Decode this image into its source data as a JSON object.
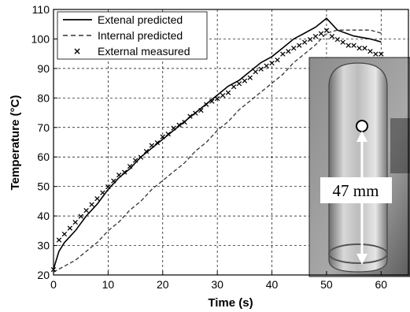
{
  "chart_data": {
    "type": "line",
    "title": "",
    "xlabel": "Time (s)",
    "ylabel": "Temperature (°C)",
    "xlim": [
      0,
      65
    ],
    "ylim": [
      20,
      110
    ],
    "xticks": [
      0,
      10,
      20,
      30,
      40,
      50,
      60
    ],
    "yticks": [
      20,
      30,
      40,
      50,
      60,
      70,
      80,
      90,
      100,
      110
    ],
    "grid": true,
    "legend_position": "top-left",
    "series": [
      {
        "name": "Extenal predicted",
        "style": "solid",
        "color": "#000000",
        "points": [
          [
            0,
            22
          ],
          [
            1,
            28
          ],
          [
            2,
            31
          ],
          [
            4,
            35
          ],
          [
            6,
            40
          ],
          [
            8,
            44
          ],
          [
            10,
            49
          ],
          [
            12,
            53
          ],
          [
            14,
            56
          ],
          [
            16,
            60
          ],
          [
            18,
            63
          ],
          [
            20,
            66
          ],
          [
            22,
            69
          ],
          [
            24,
            72
          ],
          [
            26,
            75
          ],
          [
            28,
            78
          ],
          [
            30,
            81
          ],
          [
            32,
            84
          ],
          [
            34,
            86
          ],
          [
            36,
            89
          ],
          [
            38,
            92
          ],
          [
            40,
            94
          ],
          [
            42,
            97
          ],
          [
            44,
            100
          ],
          [
            46,
            102
          ],
          [
            48,
            104
          ],
          [
            50,
            107
          ],
          [
            52,
            103
          ],
          [
            55,
            101
          ],
          [
            58,
            100
          ],
          [
            60,
            99
          ]
        ]
      },
      {
        "name": "Internal predicted",
        "style": "dashed",
        "color": "#333333",
        "points": [
          [
            0,
            21
          ],
          [
            2,
            23
          ],
          [
            4,
            25
          ],
          [
            6,
            28
          ],
          [
            8,
            31
          ],
          [
            10,
            35
          ],
          [
            12,
            38
          ],
          [
            14,
            42
          ],
          [
            16,
            45
          ],
          [
            18,
            49
          ],
          [
            20,
            52
          ],
          [
            22,
            55
          ],
          [
            24,
            58
          ],
          [
            26,
            62
          ],
          [
            28,
            65
          ],
          [
            30,
            69
          ],
          [
            32,
            72
          ],
          [
            34,
            76
          ],
          [
            36,
            79
          ],
          [
            38,
            82
          ],
          [
            40,
            85
          ],
          [
            42,
            88
          ],
          [
            44,
            92
          ],
          [
            46,
            95
          ],
          [
            48,
            98
          ],
          [
            50,
            102
          ],
          [
            52,
            103
          ],
          [
            54,
            103
          ],
          [
            56,
            103
          ],
          [
            58,
            103
          ],
          [
            60,
            102
          ]
        ]
      },
      {
        "name": "External measured",
        "style": "markers-x",
        "color": "#000000",
        "points": [
          [
            0,
            22
          ],
          [
            1,
            32
          ],
          [
            2,
            34
          ],
          [
            3,
            36
          ],
          [
            4,
            38
          ],
          [
            5,
            40
          ],
          [
            6,
            42
          ],
          [
            7,
            44
          ],
          [
            8,
            46
          ],
          [
            9,
            48
          ],
          [
            10,
            50
          ],
          [
            11,
            52
          ],
          [
            12,
            54
          ],
          [
            13,
            55
          ],
          [
            14,
            57
          ],
          [
            15,
            59
          ],
          [
            16,
            60
          ],
          [
            17,
            62
          ],
          [
            18,
            64
          ],
          [
            19,
            65
          ],
          [
            20,
            67
          ],
          [
            21,
            68
          ],
          [
            22,
            70
          ],
          [
            23,
            71
          ],
          [
            24,
            72
          ],
          [
            25,
            74
          ],
          [
            26,
            75
          ],
          [
            27,
            76
          ],
          [
            28,
            78
          ],
          [
            29,
            79
          ],
          [
            30,
            80
          ],
          [
            31,
            81
          ],
          [
            32,
            82
          ],
          [
            33,
            84
          ],
          [
            34,
            85
          ],
          [
            35,
            86
          ],
          [
            36,
            87
          ],
          [
            37,
            89
          ],
          [
            38,
            90
          ],
          [
            39,
            91
          ],
          [
            40,
            92
          ],
          [
            41,
            93
          ],
          [
            42,
            95
          ],
          [
            43,
            96
          ],
          [
            44,
            97
          ],
          [
            45,
            98
          ],
          [
            46,
            99
          ],
          [
            47,
            100
          ],
          [
            48,
            101
          ],
          [
            49,
            102
          ],
          [
            50,
            103
          ],
          [
            51,
            101
          ],
          [
            52,
            100
          ],
          [
            53,
            99
          ],
          [
            54,
            98
          ],
          [
            55,
            98
          ],
          [
            56,
            97
          ],
          [
            57,
            97
          ],
          [
            58,
            96
          ],
          [
            59,
            95
          ],
          [
            60,
            95
          ]
        ]
      }
    ]
  },
  "inset": {
    "annotation": "47 mm",
    "background_color": "#9a9a9a"
  }
}
